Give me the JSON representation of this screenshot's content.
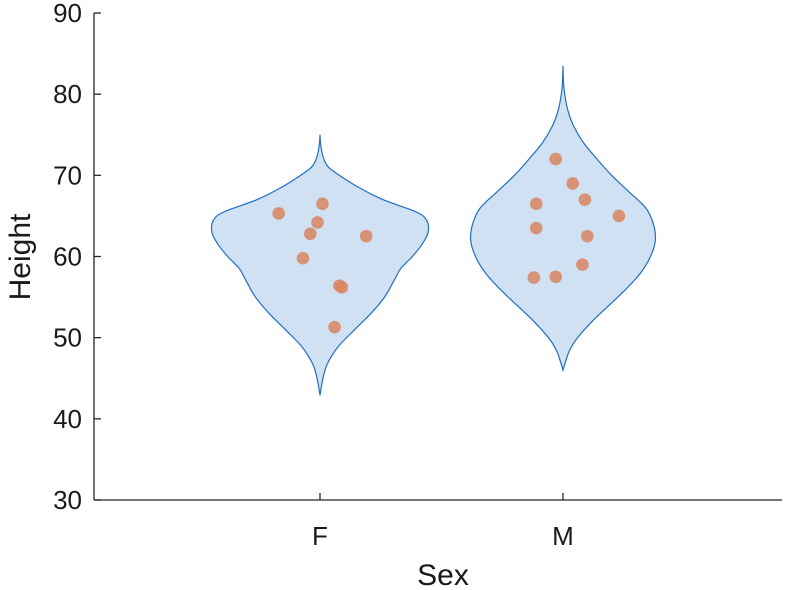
{
  "chart_data": {
    "type": "violin",
    "xlabel": "Sex",
    "ylabel": "Height",
    "ylim": [
      30,
      90
    ],
    "yticks": [
      30,
      40,
      50,
      60,
      70,
      80,
      90
    ],
    "categories": [
      "F",
      "M"
    ],
    "grid": false,
    "violin_color": "#cfe1f3",
    "violin_edge_color": "#1f6fc4",
    "point_color": "#d9845e",
    "groups": [
      {
        "category": "F",
        "points": [
          {
            "jitter": -0.17,
            "y": 65.3
          },
          {
            "jitter": -0.04,
            "y": 62.8
          },
          {
            "jitter": -0.01,
            "y": 64.2
          },
          {
            "jitter": 0.01,
            "y": 66.5
          },
          {
            "jitter": -0.07,
            "y": 59.8
          },
          {
            "jitter": 0.19,
            "y": 62.5
          },
          {
            "jitter": 0.08,
            "y": 56.4
          },
          {
            "jitter": 0.09,
            "y": 56.2
          },
          {
            "jitter": 0.06,
            "y": 51.3
          }
        ],
        "violin": {
          "y": [
            42.9,
            44,
            45.5,
            47,
            49,
            51,
            53,
            55,
            57,
            58.5,
            60,
            61.5,
            63,
            64.5,
            65.5,
            67,
            68.5,
            70,
            71,
            72,
            73,
            74,
            75
          ],
          "half_width": [
            0.0,
            0.006,
            0.016,
            0.034,
            0.078,
            0.143,
            0.21,
            0.266,
            0.304,
            0.332,
            0.38,
            0.42,
            0.445,
            0.438,
            0.395,
            0.26,
            0.16,
            0.08,
            0.035,
            0.016,
            0.007,
            0.002,
            0.0
          ]
        }
      },
      {
        "category": "M",
        "points": [
          {
            "jitter": -0.11,
            "y": 66.5
          },
          {
            "jitter": -0.11,
            "y": 63.5
          },
          {
            "jitter": -0.12,
            "y": 57.4
          },
          {
            "jitter": -0.03,
            "y": 72.0
          },
          {
            "jitter": -0.03,
            "y": 57.5
          },
          {
            "jitter": 0.09,
            "y": 67.0
          },
          {
            "jitter": 0.23,
            "y": 65.0
          },
          {
            "jitter": 0.1,
            "y": 62.5
          },
          {
            "jitter": 0.08,
            "y": 59.0
          },
          {
            "jitter": 0.04,
            "y": 69.0
          }
        ],
        "violin": {
          "y": [
            46,
            47,
            48.5,
            50,
            52,
            54,
            56,
            58,
            60,
            62,
            64,
            66,
            68,
            70,
            72,
            74,
            76,
            78,
            80,
            81.5,
            83.5
          ],
          "half_width": [
            0.0,
            0.01,
            0.028,
            0.06,
            0.12,
            0.19,
            0.26,
            0.32,
            0.36,
            0.38,
            0.372,
            0.34,
            0.27,
            0.2,
            0.14,
            0.085,
            0.045,
            0.02,
            0.007,
            0.002,
            0.0
          ]
        }
      }
    ]
  }
}
